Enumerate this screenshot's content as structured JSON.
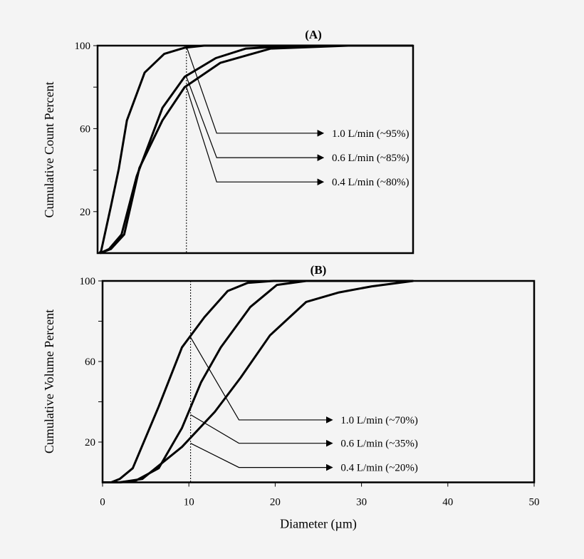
{
  "chart_data": [
    {
      "type": "line",
      "title": "(A)",
      "ylabel": "Cumulative Count Percent",
      "xlabel": "",
      "xlim": [
        0,
        35.5
      ],
      "ylim": [
        0,
        100
      ],
      "yticks": [
        20,
        40,
        60,
        80,
        100
      ],
      "ytick_labels": [
        "20",
        "",
        "60",
        "",
        "100"
      ],
      "xticks": [],
      "grid": false,
      "reference_line_x": 10,
      "series": [
        {
          "name": "1.0 L/min",
          "x": [
            0.2,
            0.4,
            1.5,
            2.4,
            3.3,
            5.3,
            7.5,
            9.8,
            12,
            35.5
          ],
          "y": [
            0,
            1,
            22.5,
            40.8,
            64,
            87,
            96,
            99,
            100,
            100
          ]
        },
        {
          "name": "0.6 L/min",
          "x": [
            0.3,
            1.3,
            2.7,
            4.4,
            7.3,
            9.8,
            13.3,
            16.7,
            22.4,
            35.5
          ],
          "y": [
            0,
            2,
            9,
            37,
            70,
            85,
            94,
            98.6,
            100,
            100
          ]
        },
        {
          "name": "0.4 L/min",
          "x": [
            0.3,
            1.5,
            3.0,
            4.7,
            7.3,
            9.8,
            13.8,
            19.5,
            28.2,
            35.5
          ],
          "y": [
            0,
            2,
            9,
            41,
            64,
            80,
            91.7,
            98.6,
            100,
            100
          ]
        }
      ],
      "annotations": [
        {
          "text": "1.0 L/min (~95%)",
          "from": [
            10,
            99.6
          ],
          "elbow": [
            13.4,
            57.8
          ],
          "to": [
            25.4,
            57.8
          ]
        },
        {
          "text": "0.6 L/min (~85%)",
          "from": [
            10,
            85
          ],
          "elbow": [
            13.4,
            46
          ],
          "to": [
            25.4,
            46
          ]
        },
        {
          "text": "0.4 L/min (~80%)",
          "from": [
            10,
            80
          ],
          "elbow": [
            13.4,
            34.3
          ],
          "to": [
            25.4,
            34.3
          ]
        }
      ]
    },
    {
      "type": "line",
      "title": "(B)",
      "ylabel": "Cumulative Volume Percent",
      "xlabel": "Diameter  (µm)",
      "xlim": [
        0,
        50
      ],
      "ylim": [
        0,
        100
      ],
      "yticks": [
        20,
        40,
        60,
        80,
        100
      ],
      "ytick_labels": [
        "20",
        "",
        "60",
        "",
        "100"
      ],
      "xticks": [
        0,
        10,
        20,
        30,
        40,
        50
      ],
      "xtick_labels": [
        "0",
        "10",
        "20",
        "30",
        "40",
        "50"
      ],
      "grid": false,
      "reference_line_x": 10.2,
      "series": [
        {
          "name": "1.0 L/min",
          "x": [
            0,
            1,
            2.0,
            3.5,
            6.5,
            9.2,
            11.8,
            14.5,
            16.8,
            19.8,
            36
          ],
          "y": [
            0,
            0,
            1.7,
            7,
            37.6,
            67,
            82,
            95,
            99,
            100,
            100
          ]
        },
        {
          "name": "0.6 L/min",
          "x": [
            0,
            2,
            3.9,
            6.5,
            9.2,
            11.4,
            13.7,
            17.1,
            20.2,
            23.6,
            36
          ],
          "y": [
            0,
            0,
            1,
            7,
            27,
            49.6,
            67,
            87,
            98,
            100,
            100
          ]
        },
        {
          "name": "0.4 L/min",
          "x": [
            0,
            2,
            4.6,
            9.2,
            13,
            16,
            19.4,
            23.6,
            27.4,
            31.2,
            36
          ],
          "y": [
            0,
            0,
            1.7,
            17.6,
            35,
            52,
            73,
            89.6,
            94.3,
            97.3,
            100
          ]
        }
      ],
      "annotations": [
        {
          "text": "1.0 L/min (~70%)",
          "from": [
            10.2,
            72
          ],
          "elbow": [
            15.8,
            31
          ],
          "to": [
            26.6,
            31
          ]
        },
        {
          "text": "0.6 L/min (~35%)",
          "from": [
            10.2,
            33.6
          ],
          "elbow": [
            15.8,
            19.4
          ],
          "to": [
            26.6,
            19.4
          ]
        },
        {
          "text": "0.4 L/min (~20%)",
          "from": [
            10.2,
            19.4
          ],
          "elbow": [
            15.8,
            7.4
          ],
          "to": [
            26.6,
            7.4
          ]
        }
      ]
    }
  ]
}
